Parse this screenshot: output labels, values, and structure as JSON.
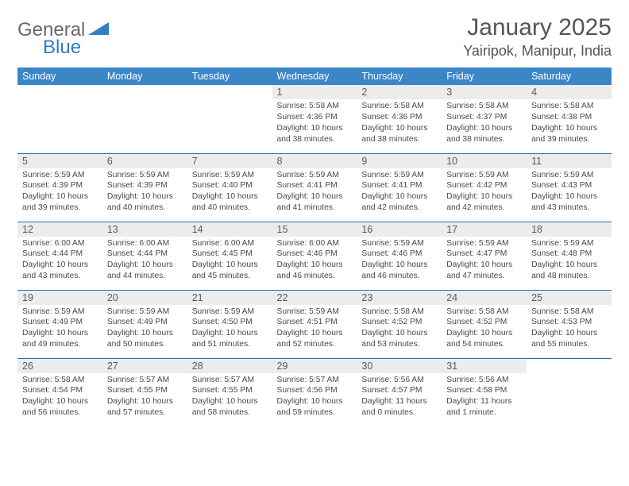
{
  "logo": {
    "word1": "General",
    "word2": "Blue"
  },
  "title": "January 2025",
  "location": "Yairipok, Manipur, India",
  "colors": {
    "header_bg": "#3b86c7",
    "header_fg": "#ffffff",
    "divider": "#2e6aa3",
    "daynum_bg": "#ececec",
    "text": "#4a4a4a",
    "logo_gray": "#6a6a6a",
    "logo_blue": "#2f7fc1"
  },
  "day_headers": [
    "Sunday",
    "Monday",
    "Tuesday",
    "Wednesday",
    "Thursday",
    "Friday",
    "Saturday"
  ],
  "weeks": [
    [
      {
        "n": "",
        "lines": [
          "",
          "",
          "",
          ""
        ],
        "empty": true
      },
      {
        "n": "",
        "lines": [
          "",
          "",
          "",
          ""
        ],
        "empty": true
      },
      {
        "n": "",
        "lines": [
          "",
          "",
          "",
          ""
        ],
        "empty": true
      },
      {
        "n": "1",
        "lines": [
          "Sunrise: 5:58 AM",
          "Sunset: 4:36 PM",
          "Daylight: 10 hours",
          "and 38 minutes."
        ]
      },
      {
        "n": "2",
        "lines": [
          "Sunrise: 5:58 AM",
          "Sunset: 4:36 PM",
          "Daylight: 10 hours",
          "and 38 minutes."
        ]
      },
      {
        "n": "3",
        "lines": [
          "Sunrise: 5:58 AM",
          "Sunset: 4:37 PM",
          "Daylight: 10 hours",
          "and 38 minutes."
        ]
      },
      {
        "n": "4",
        "lines": [
          "Sunrise: 5:58 AM",
          "Sunset: 4:38 PM",
          "Daylight: 10 hours",
          "and 39 minutes."
        ]
      }
    ],
    [
      {
        "n": "5",
        "lines": [
          "Sunrise: 5:59 AM",
          "Sunset: 4:39 PM",
          "Daylight: 10 hours",
          "and 39 minutes."
        ]
      },
      {
        "n": "6",
        "lines": [
          "Sunrise: 5:59 AM",
          "Sunset: 4:39 PM",
          "Daylight: 10 hours",
          "and 40 minutes."
        ]
      },
      {
        "n": "7",
        "lines": [
          "Sunrise: 5:59 AM",
          "Sunset: 4:40 PM",
          "Daylight: 10 hours",
          "and 40 minutes."
        ]
      },
      {
        "n": "8",
        "lines": [
          "Sunrise: 5:59 AM",
          "Sunset: 4:41 PM",
          "Daylight: 10 hours",
          "and 41 minutes."
        ]
      },
      {
        "n": "9",
        "lines": [
          "Sunrise: 5:59 AM",
          "Sunset: 4:41 PM",
          "Daylight: 10 hours",
          "and 42 minutes."
        ]
      },
      {
        "n": "10",
        "lines": [
          "Sunrise: 5:59 AM",
          "Sunset: 4:42 PM",
          "Daylight: 10 hours",
          "and 42 minutes."
        ]
      },
      {
        "n": "11",
        "lines": [
          "Sunrise: 5:59 AM",
          "Sunset: 4:43 PM",
          "Daylight: 10 hours",
          "and 43 minutes."
        ]
      }
    ],
    [
      {
        "n": "12",
        "lines": [
          "Sunrise: 6:00 AM",
          "Sunset: 4:44 PM",
          "Daylight: 10 hours",
          "and 43 minutes."
        ]
      },
      {
        "n": "13",
        "lines": [
          "Sunrise: 6:00 AM",
          "Sunset: 4:44 PM",
          "Daylight: 10 hours",
          "and 44 minutes."
        ]
      },
      {
        "n": "14",
        "lines": [
          "Sunrise: 6:00 AM",
          "Sunset: 4:45 PM",
          "Daylight: 10 hours",
          "and 45 minutes."
        ]
      },
      {
        "n": "15",
        "lines": [
          "Sunrise: 6:00 AM",
          "Sunset: 4:46 PM",
          "Daylight: 10 hours",
          "and 46 minutes."
        ]
      },
      {
        "n": "16",
        "lines": [
          "Sunrise: 5:59 AM",
          "Sunset: 4:46 PM",
          "Daylight: 10 hours",
          "and 46 minutes."
        ]
      },
      {
        "n": "17",
        "lines": [
          "Sunrise: 5:59 AM",
          "Sunset: 4:47 PM",
          "Daylight: 10 hours",
          "and 47 minutes."
        ]
      },
      {
        "n": "18",
        "lines": [
          "Sunrise: 5:59 AM",
          "Sunset: 4:48 PM",
          "Daylight: 10 hours",
          "and 48 minutes."
        ]
      }
    ],
    [
      {
        "n": "19",
        "lines": [
          "Sunrise: 5:59 AM",
          "Sunset: 4:49 PM",
          "Daylight: 10 hours",
          "and 49 minutes."
        ]
      },
      {
        "n": "20",
        "lines": [
          "Sunrise: 5:59 AM",
          "Sunset: 4:49 PM",
          "Daylight: 10 hours",
          "and 50 minutes."
        ]
      },
      {
        "n": "21",
        "lines": [
          "Sunrise: 5:59 AM",
          "Sunset: 4:50 PM",
          "Daylight: 10 hours",
          "and 51 minutes."
        ]
      },
      {
        "n": "22",
        "lines": [
          "Sunrise: 5:59 AM",
          "Sunset: 4:51 PM",
          "Daylight: 10 hours",
          "and 52 minutes."
        ]
      },
      {
        "n": "23",
        "lines": [
          "Sunrise: 5:58 AM",
          "Sunset: 4:52 PM",
          "Daylight: 10 hours",
          "and 53 minutes."
        ]
      },
      {
        "n": "24",
        "lines": [
          "Sunrise: 5:58 AM",
          "Sunset: 4:52 PM",
          "Daylight: 10 hours",
          "and 54 minutes."
        ]
      },
      {
        "n": "25",
        "lines": [
          "Sunrise: 5:58 AM",
          "Sunset: 4:53 PM",
          "Daylight: 10 hours",
          "and 55 minutes."
        ]
      }
    ],
    [
      {
        "n": "26",
        "lines": [
          "Sunrise: 5:58 AM",
          "Sunset: 4:54 PM",
          "Daylight: 10 hours",
          "and 56 minutes."
        ]
      },
      {
        "n": "27",
        "lines": [
          "Sunrise: 5:57 AM",
          "Sunset: 4:55 PM",
          "Daylight: 10 hours",
          "and 57 minutes."
        ]
      },
      {
        "n": "28",
        "lines": [
          "Sunrise: 5:57 AM",
          "Sunset: 4:55 PM",
          "Daylight: 10 hours",
          "and 58 minutes."
        ]
      },
      {
        "n": "29",
        "lines": [
          "Sunrise: 5:57 AM",
          "Sunset: 4:56 PM",
          "Daylight: 10 hours",
          "and 59 minutes."
        ]
      },
      {
        "n": "30",
        "lines": [
          "Sunrise: 5:56 AM",
          "Sunset: 4:57 PM",
          "Daylight: 11 hours",
          "and 0 minutes."
        ]
      },
      {
        "n": "31",
        "lines": [
          "Sunrise: 5:56 AM",
          "Sunset: 4:58 PM",
          "Daylight: 11 hours",
          "and 1 minute."
        ]
      },
      {
        "n": "",
        "lines": [
          "",
          "",
          "",
          ""
        ],
        "empty": true
      }
    ]
  ]
}
